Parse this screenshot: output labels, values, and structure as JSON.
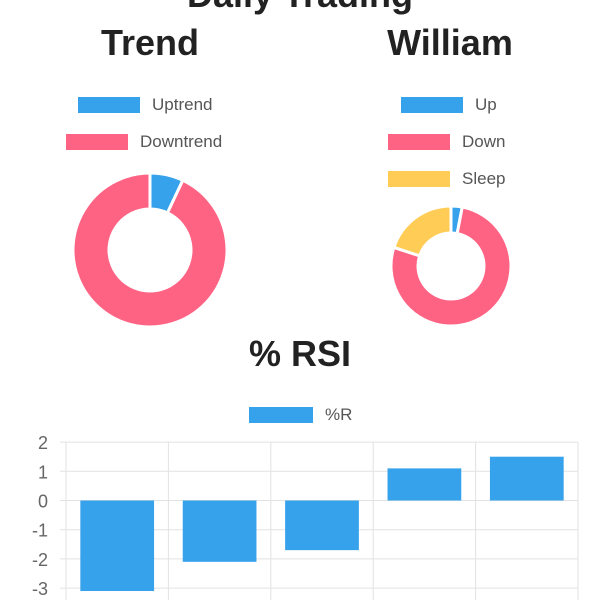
{
  "header": {
    "title": "Daily Trading"
  },
  "chart_data": [
    {
      "type": "pie",
      "subtype": "doughnut",
      "title": "Trend",
      "labels": [
        "Uptrend",
        "Downtrend"
      ],
      "values": [
        7,
        93
      ],
      "colors": [
        "#36a2eb",
        "#ff6384"
      ],
      "legend": "top"
    },
    {
      "type": "pie",
      "subtype": "doughnut",
      "title": "William",
      "labels": [
        "Up",
        "Down",
        "Sleep"
      ],
      "values": [
        3,
        77,
        20
      ],
      "colors": [
        "#36a2eb",
        "#ff6384",
        "#ffcd56"
      ],
      "legend": "top"
    },
    {
      "type": "bar",
      "title": "% RSI",
      "series": [
        {
          "name": "%R",
          "values": [
            -3.1,
            -2.1,
            -1.7,
            1.1,
            1.5
          ],
          "color": "#36a2eb"
        }
      ],
      "y_ticks": [
        "2",
        "1",
        "0",
        "-1",
        "-2",
        "-3"
      ],
      "ylim": [
        -3.3,
        2
      ],
      "grid": true,
      "legend": "top"
    }
  ]
}
